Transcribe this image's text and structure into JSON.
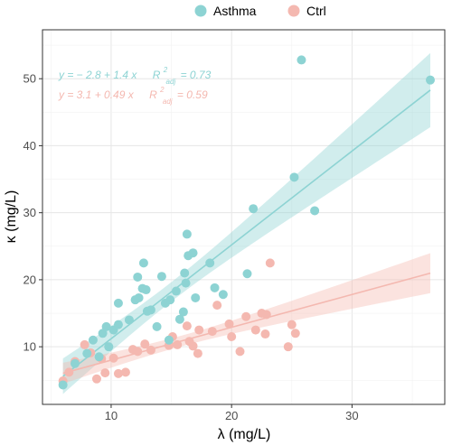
{
  "chart_data": {
    "type": "scatter",
    "xlabel": "λ (mg/L)",
    "ylabel": "κ (mg/L)",
    "xlim": [
      4.3,
      37.7
    ],
    "ylim": [
      1.4,
      57.3
    ],
    "x_ticks": [
      10,
      20,
      30
    ],
    "y_ticks": [
      10,
      20,
      30,
      40,
      50
    ],
    "grid": true,
    "legend_position": "top",
    "series": [
      {
        "name": "Asthma",
        "color": "#8dd3d3",
        "fit": {
          "intercept": -2.8,
          "slope": 1.4,
          "x_range": [
            6,
            36.5
          ]
        },
        "equation": {
          "lhs": "y = − 2.8 + 1.4 x",
          "r_label": "R",
          "r_sup": "2",
          "r_sub": "adj",
          "r_value": "= 0.73"
        },
        "points": [
          [
            6,
            4.3
          ],
          [
            7.0,
            7.5
          ],
          [
            8.0,
            9.0
          ],
          [
            8.5,
            11.0
          ],
          [
            9.0,
            8.5
          ],
          [
            9.3,
            12.0
          ],
          [
            9.6,
            13.0
          ],
          [
            9.8,
            10.0
          ],
          [
            10.2,
            12.5
          ],
          [
            10.6,
            13.3
          ],
          [
            10.6,
            16.5
          ],
          [
            11.5,
            14.0
          ],
          [
            12.0,
            17.0
          ],
          [
            12.2,
            20.4
          ],
          [
            12.3,
            17.3
          ],
          [
            12.6,
            18.7
          ],
          [
            12.7,
            22.5
          ],
          [
            12.9,
            18.5
          ],
          [
            13.0,
            15.3
          ],
          [
            13.3,
            15.5
          ],
          [
            13.8,
            13.0
          ],
          [
            14.2,
            20.5
          ],
          [
            14.5,
            16.5
          ],
          [
            14.8,
            11.0
          ],
          [
            14.9,
            17.0
          ],
          [
            15.4,
            18.3
          ],
          [
            15.7,
            14.1
          ],
          [
            16.0,
            15.2
          ],
          [
            16.1,
            21.0
          ],
          [
            16.3,
            26.8
          ],
          [
            16.4,
            23.6
          ],
          [
            16.8,
            24.0
          ],
          [
            16.2,
            19.5
          ],
          [
            17.0,
            17.3
          ],
          [
            18.2,
            22.5
          ],
          [
            18.6,
            18.8
          ],
          [
            19.3,
            17.8
          ],
          [
            21.3,
            20.9
          ],
          [
            21.8,
            30.6
          ],
          [
            25.2,
            35.3
          ],
          [
            25.8,
            52.8
          ],
          [
            26.9,
            30.3
          ],
          [
            36.5,
            49.8
          ]
        ]
      },
      {
        "name": "Ctrl",
        "color": "#f4b8b0",
        "fit": {
          "intercept": 3.1,
          "slope": 0.49,
          "x_range": [
            6,
            36.5
          ]
        },
        "equation": {
          "lhs": "y = 3.1 + 0.49 x",
          "r_label": "R",
          "r_sup": "2",
          "r_sub": "adj",
          "r_value": "= 0.59"
        },
        "points": [
          [
            6.0,
            4.9
          ],
          [
            6.5,
            6.2
          ],
          [
            7.0,
            7.8
          ],
          [
            7.8,
            10.3
          ],
          [
            8.3,
            9.1
          ],
          [
            8.8,
            5.2
          ],
          [
            9.2,
            8.2
          ],
          [
            9.5,
            6.1
          ],
          [
            10.2,
            8.3
          ],
          [
            10.6,
            6.0
          ],
          [
            11.2,
            6.2
          ],
          [
            11.8,
            9.6
          ],
          [
            12.2,
            9.3
          ],
          [
            12.8,
            10.4
          ],
          [
            13.3,
            9.5
          ],
          [
            14.8,
            10.2
          ],
          [
            15.1,
            11.5
          ],
          [
            15.5,
            10.3
          ],
          [
            16.3,
            13.1
          ],
          [
            16.5,
            10.8
          ],
          [
            16.8,
            10.1
          ],
          [
            17.2,
            9.0
          ],
          [
            17.3,
            12.5
          ],
          [
            18.4,
            12.3
          ],
          [
            18.8,
            16.2
          ],
          [
            19.8,
            13.4
          ],
          [
            20.0,
            11.5
          ],
          [
            20.7,
            9.3
          ],
          [
            21.2,
            14.5
          ],
          [
            22.0,
            12.5
          ],
          [
            22.5,
            15.0
          ],
          [
            22.8,
            11.9
          ],
          [
            22.9,
            14.8
          ],
          [
            23.2,
            22.5
          ],
          [
            24.7,
            10.0
          ],
          [
            25.0,
            13.3
          ],
          [
            25.3,
            12.0
          ]
        ]
      }
    ]
  }
}
